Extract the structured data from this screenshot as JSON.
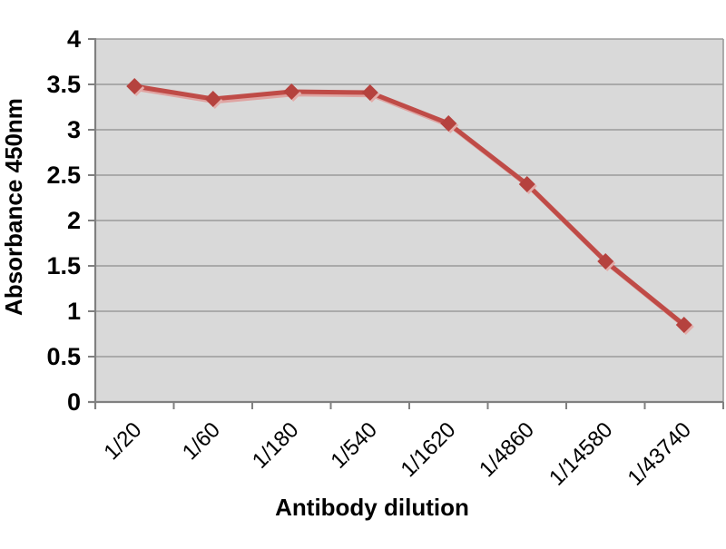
{
  "chart_data": {
    "type": "line",
    "title": "",
    "xlabel": "Antibody dilution",
    "ylabel": "Absorbance 450nm",
    "categories": [
      "1/20",
      "1/60",
      "1/180",
      "1/540",
      "1/1620",
      "1/4860",
      "1/14580",
      "1/43740"
    ],
    "series": [
      {
        "name": "Absorbance 450nm",
        "values": [
          3.48,
          3.34,
          3.42,
          3.41,
          3.07,
          2.4,
          1.55,
          0.85
        ]
      }
    ],
    "ylim": [
      0,
      4
    ],
    "ytick_step": 0.5,
    "ytick_labels": [
      "0",
      "0.5",
      "1",
      "1.5",
      "2",
      "2.5",
      "3",
      "3.5",
      "4"
    ],
    "xtick_rotation_deg": -45,
    "grid": "horizontal",
    "legend_position": "none",
    "colors": {
      "line": "#bf4b47",
      "line_shadow": "#dfa3a1",
      "marker": "#b5423e",
      "marker_shadow": "#e3aca9",
      "plot_background": "#d9d9d9",
      "gridline": "#9a9a9a",
      "axis": "#808080",
      "text": "#000000",
      "page_background": "#ffffff"
    }
  }
}
